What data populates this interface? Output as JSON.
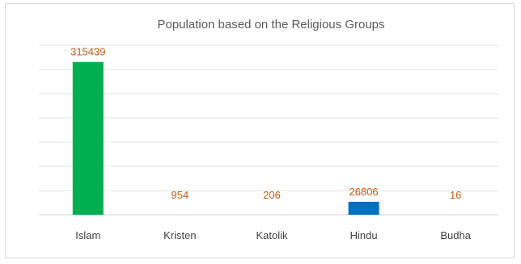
{
  "chart_data": {
    "type": "bar",
    "title": "Population based on the Religious Groups",
    "categories": [
      "Islam",
      "Kristen",
      "Katolik",
      "Hindu",
      "Budha"
    ],
    "values": [
      315439,
      954,
      206,
      26806,
      16
    ],
    "bar_colors": [
      "#00b050",
      "#0070c0",
      "#0070c0",
      "#0070c0",
      "#0070c0"
    ],
    "label_color": "#c55a11",
    "grid": true,
    "ylim": [
      0,
      350000
    ],
    "xlabel": "",
    "ylabel": ""
  }
}
